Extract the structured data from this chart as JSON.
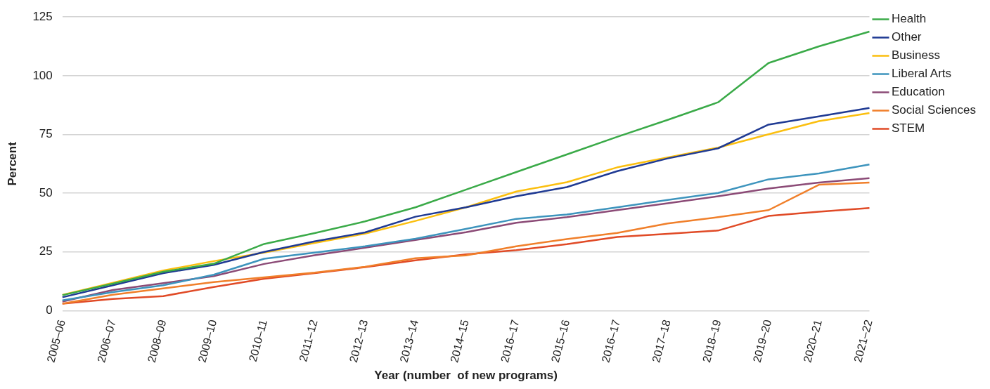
{
  "chart_data": {
    "type": "line",
    "xlabel": "Year (number  of new programs)",
    "ylabel": "Percent",
    "categories": [
      "2005–06",
      "2006–07",
      "2008–09",
      "2009–10",
      "2010–11",
      "2011–12",
      "2012–13",
      "2013–14",
      "2014–15",
      "2016–17",
      "2015–16",
      "2016–17",
      "2017–18",
      "2018–19",
      "2019–20",
      "2020–21",
      "2021–22"
    ],
    "series": [
      {
        "name": "Health",
        "color": "#3aaa48",
        "values": [
          6.6,
          11.5,
          16.6,
          20,
          28.4,
          33,
          38,
          44,
          51.5,
          59,
          66.5,
          74,
          81.2,
          88.7,
          105.4,
          112.5,
          118.8
        ]
      },
      {
        "name": "Other",
        "color": "#1f3a93",
        "values": [
          5.7,
          10.8,
          16,
          19.5,
          25,
          29.5,
          33.3,
          40,
          44,
          48.7,
          52.6,
          59.4,
          64.8,
          69.1,
          79.2,
          82.7,
          86.3
        ]
      },
      {
        "name": "Business",
        "color": "#fbbf0f",
        "values": [
          6.7,
          11.9,
          17.1,
          21.1,
          24.7,
          28.8,
          32.8,
          38.2,
          44,
          50.7,
          54.7,
          61,
          65.2,
          69.4,
          75.1,
          80.7,
          84.1
        ]
      },
      {
        "name": "Liberal Arts",
        "color": "#3d94bd",
        "values": [
          4.4,
          7.9,
          10.8,
          15.3,
          22.1,
          24.7,
          27.4,
          30.6,
          34.8,
          39.1,
          40.9,
          44,
          47.1,
          50.1,
          55.9,
          58.4,
          62.2
        ]
      },
      {
        "name": "Education",
        "color": "#8b4a76",
        "values": [
          3.9,
          8.8,
          11.7,
          14.7,
          19.9,
          23.6,
          26.8,
          30.1,
          33.4,
          37.4,
          39.8,
          42.8,
          45.7,
          48.7,
          52,
          54.5,
          56.4
        ]
      },
      {
        "name": "Social Sciences",
        "color": "#f07f2a",
        "values": [
          3,
          6.8,
          9.5,
          12.2,
          14.2,
          16.2,
          18.7,
          22.3,
          23.5,
          27.4,
          30.5,
          33.1,
          37.1,
          39.8,
          42.8,
          53.6,
          54.5
        ]
      },
      {
        "name": "STEM",
        "color": "#e04a26",
        "values": [
          3,
          5,
          6.2,
          10.1,
          13.6,
          16,
          18.5,
          21.4,
          24,
          25.8,
          28.3,
          31.4,
          32.7,
          34.1,
          40.3,
          42.1,
          43.7
        ]
      }
    ],
    "ylim": [
      0,
      125
    ],
    "yticks": [
      0,
      25,
      50,
      75,
      100,
      125
    ],
    "grid": "y",
    "legend": "top right",
    "marker": "none",
    "line_style": "solid"
  }
}
